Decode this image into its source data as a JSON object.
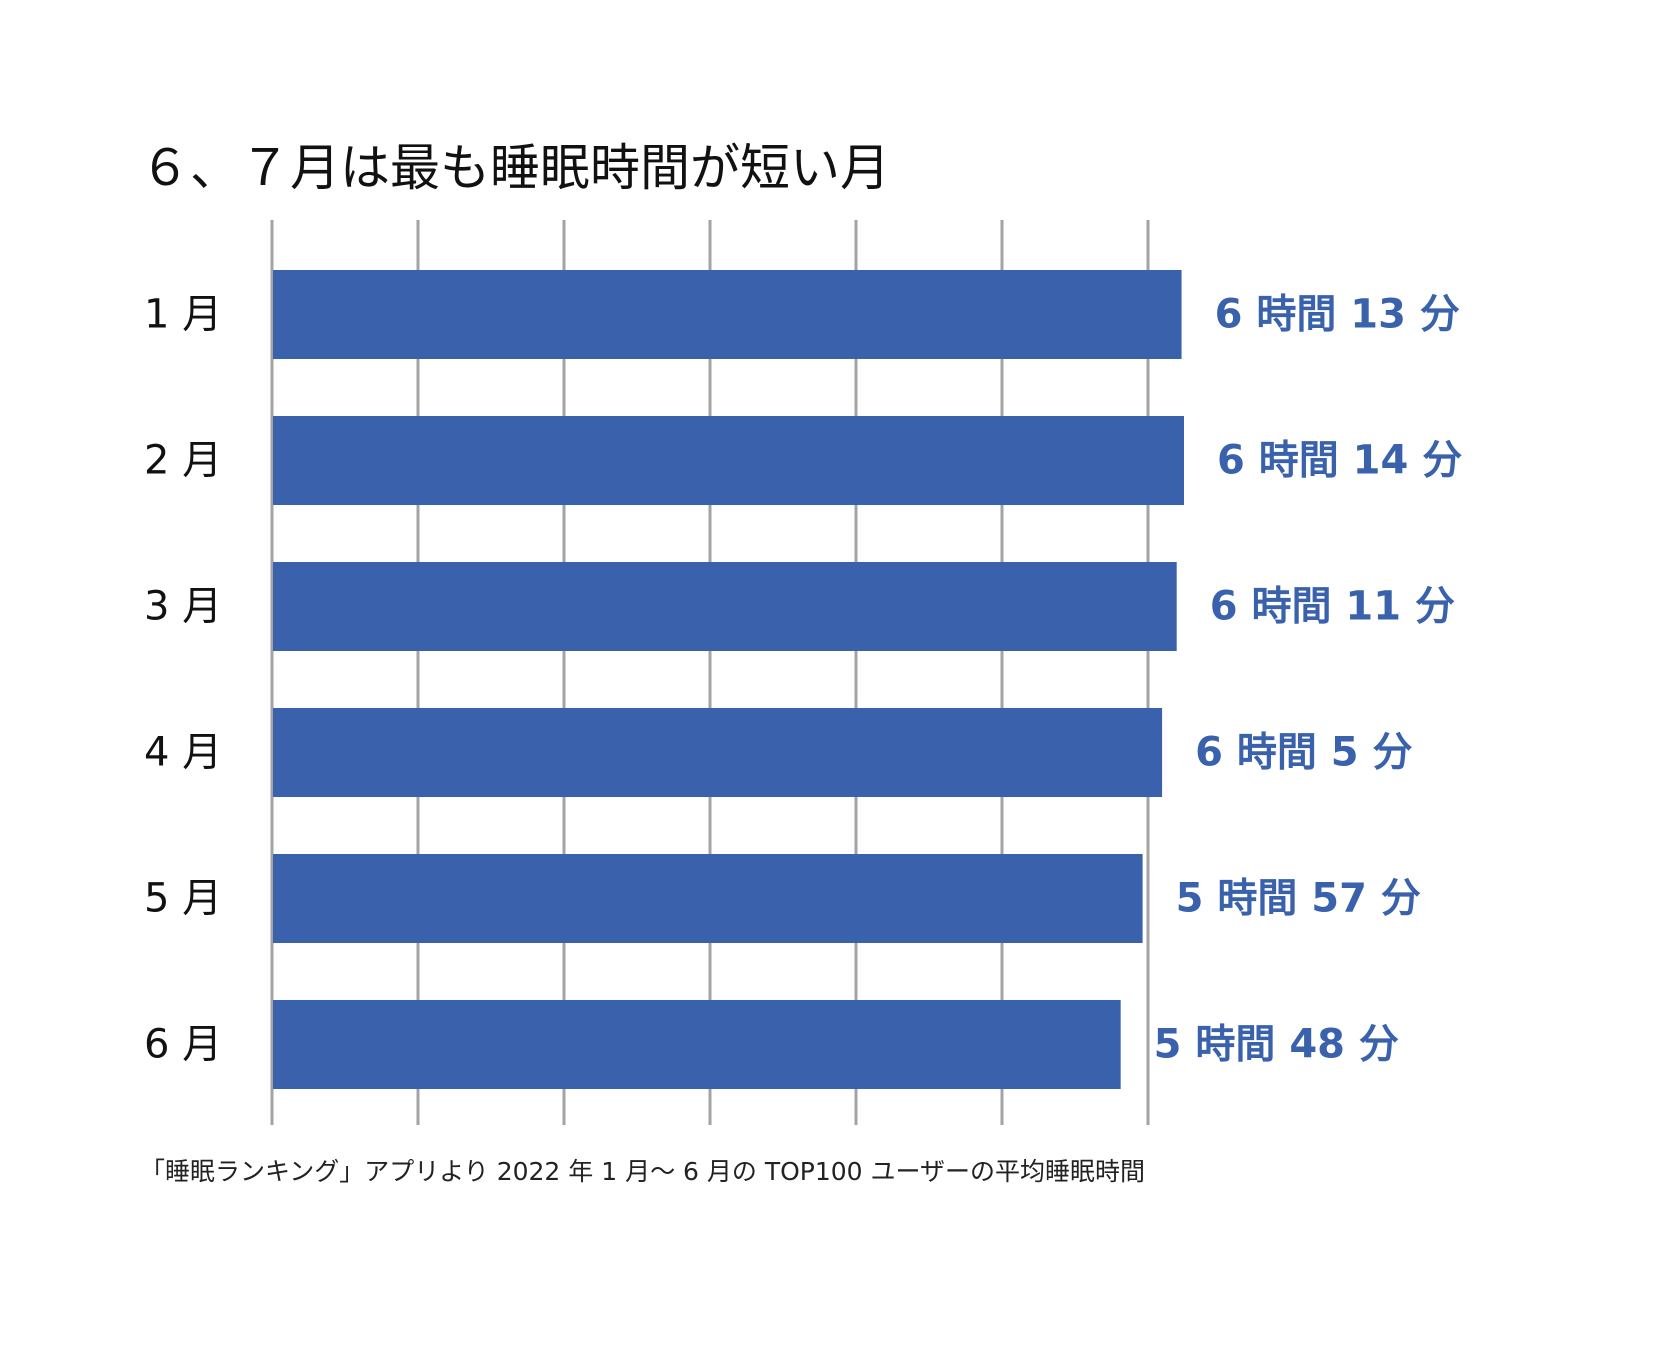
{
  "chart_data": {
    "type": "bar",
    "orientation": "horizontal",
    "title": "６、７月は最も睡眠時間が短い月",
    "source": "「睡眠ランキング」アプリより 2022 年 1 月〜 6 月の TOP100 ユーザーの平均睡眠時間",
    "categories": [
      "1 月",
      "2 月",
      "3 月",
      "4 月",
      "5 月",
      "6 月"
    ],
    "values": [
      373,
      374,
      371,
      365,
      357,
      348
    ],
    "data_labels": [
      "6 時間 13 分",
      "6 時間 14 分",
      "6 時間 11 分",
      "6 時間 5 分",
      "5 時間 57 分",
      "5 時間 48 分"
    ],
    "unit": "分",
    "grid": true,
    "colors": {
      "bar": "#3A62AC",
      "label": "#3A62AC",
      "grid": "#A3A3A3",
      "text": "#111111"
    }
  }
}
